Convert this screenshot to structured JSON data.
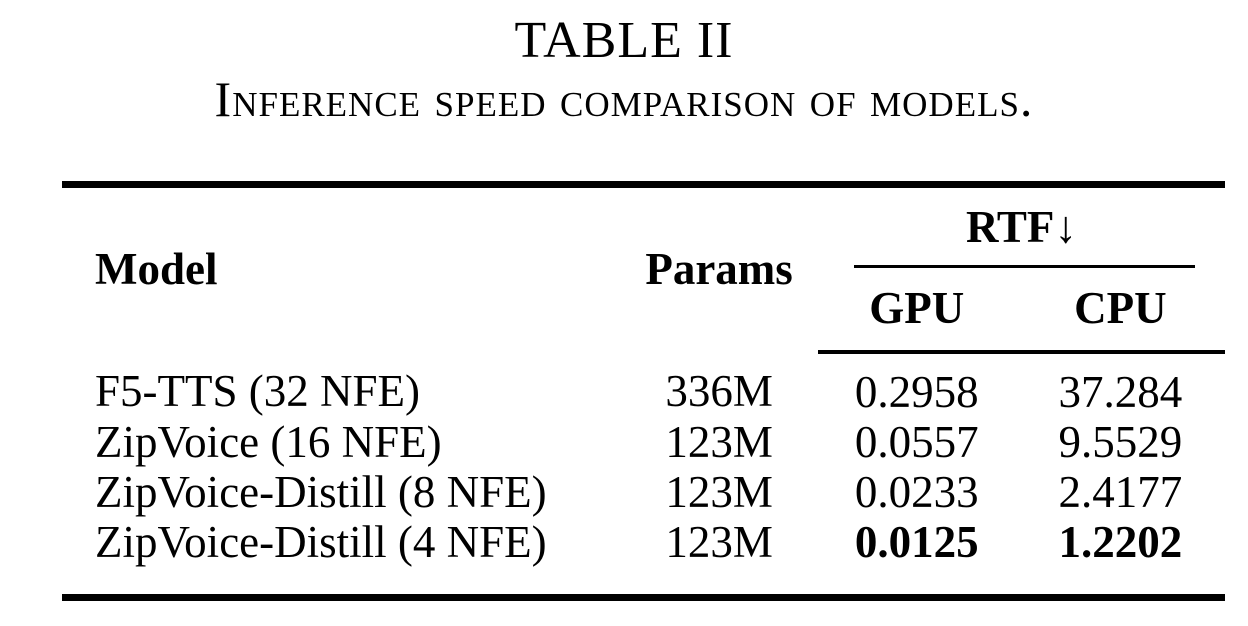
{
  "page": {
    "background": "#ffffff",
    "text_color": "#000000"
  },
  "caption": {
    "number": "TABLE II",
    "text": "Inference speed comparison of models."
  },
  "table": {
    "headers": {
      "model": "Model",
      "params": "Params",
      "rtf_group": "RTF↓",
      "gpu": "GPU",
      "cpu": "CPU"
    },
    "rows": [
      {
        "model": "F5-TTS (32 NFE)",
        "params": "336M",
        "gpu": "0.2958",
        "cpu": "37.284",
        "bold_rtf": false
      },
      {
        "model": "ZipVoice (16 NFE)",
        "params": "123M",
        "gpu": "0.0557",
        "cpu": "9.5529",
        "bold_rtf": false
      },
      {
        "model": "ZipVoice-Distill (8 NFE)",
        "params": "123M",
        "gpu": "0.0233",
        "cpu": "2.4177",
        "bold_rtf": false
      },
      {
        "model": "ZipVoice-Distill (4 NFE)",
        "params": "123M",
        "gpu": "0.0125",
        "cpu": "1.2202",
        "bold_rtf": true
      }
    ]
  }
}
